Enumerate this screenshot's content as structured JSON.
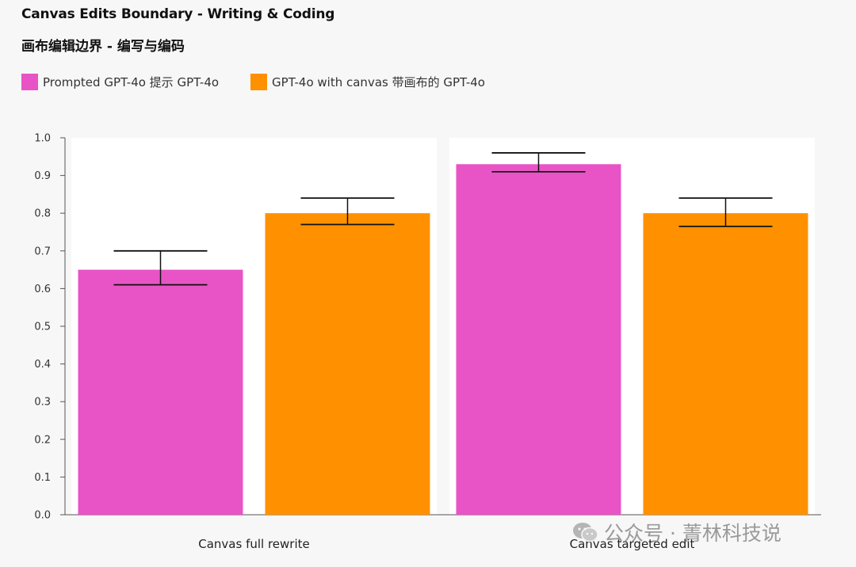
{
  "title": "Canvas Edits Boundary - Writing & Coding",
  "subtitle": "画布编辑边界 - 编写与编码",
  "watermark": {
    "text": "公众号 · 菁林科技说",
    "icon": "wechat-icon"
  },
  "colors": {
    "prompted": "#e854c5",
    "canvas": "#ff9100"
  },
  "chart_data": {
    "type": "bar",
    "categories": [
      "Canvas full rewrite",
      "Canvas targeted edit"
    ],
    "series": [
      {
        "name": "Prompted GPT-4o 提示 GPT-4o",
        "values": [
          0.65,
          0.93
        ],
        "error_low": [
          0.61,
          0.91
        ],
        "error_high": [
          0.7,
          0.96
        ]
      },
      {
        "name": "GPT-4o with canvas 带画布的 GPT-4o",
        "values": [
          0.8,
          0.8
        ],
        "error_low": [
          0.77,
          0.765
        ],
        "error_high": [
          0.84,
          0.84
        ]
      }
    ],
    "ylim": [
      0,
      1.0
    ],
    "yticks": [
      "0.0",
      "0.1",
      "0.2",
      "0.3",
      "0.4",
      "0.5",
      "0.6",
      "0.7",
      "0.8",
      "0.9",
      "1.0"
    ],
    "xlabel": "",
    "ylabel": "",
    "grid": false,
    "legend": "top-left"
  }
}
